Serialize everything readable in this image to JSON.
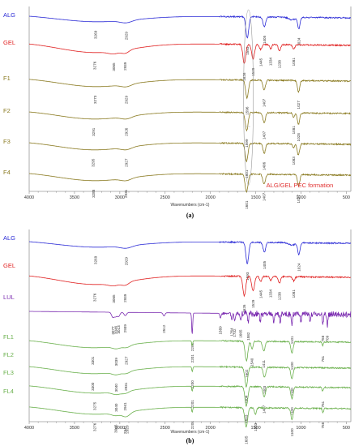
{
  "chart_data": [
    {
      "type": "line",
      "panel_label": "(a)",
      "xlabel": "Wavenumbers (cm-1)",
      "ylabel": "",
      "xlim": [
        4000,
        450
      ],
      "x_reversed": true,
      "x_ticks": [
        4000,
        3500,
        3000,
        2500,
        2000,
        1500,
        1000,
        500
      ],
      "grid": false,
      "annotation": "ALG/GEL PEC formation",
      "series": [
        {
          "name": "ALG",
          "color": "#2b2bd6",
          "peaks": [
            3269,
            2929,
            1593,
            1405,
            1024
          ]
        },
        {
          "name": "GEL",
          "color": "#e02020",
          "peaks": [
            3276,
            3065,
            2939,
            1626,
            1529,
            1445,
            1334,
            1238,
            1081
          ]
        },
        {
          "name": "F1",
          "color": "#8a7a20",
          "peaks": [
            3273,
            2929,
            1596,
            1407,
            1027
          ]
        },
        {
          "name": "F2",
          "color": "#8a7a20",
          "peaks": [
            3291,
            2926,
            1599,
            1407,
            1081,
            1028
          ]
        },
        {
          "name": "F3",
          "color": "#8a7a20",
          "peaks": [
            3295,
            2927,
            1601,
            1406,
            1083
          ]
        },
        {
          "name": "F4",
          "color": "#8a7a20",
          "peaks": [
            3288,
            2931,
            1601,
            1407,
            1027
          ]
        }
      ]
    },
    {
      "type": "line",
      "panel_label": "(b)",
      "xlabel": "Wavenumbers (cm-1)",
      "ylabel": "",
      "xlim": [
        4000,
        450
      ],
      "x_reversed": true,
      "x_ticks": [
        4000,
        3500,
        3000,
        2500,
        2000,
        1500,
        1000,
        500
      ],
      "grid": false,
      "series": [
        {
          "name": "ALG",
          "color": "#2b2bd6",
          "peaks": [
            3269,
            2929,
            1593,
            1405,
            1024
          ]
        },
        {
          "name": "GEL",
          "color": "#e02020",
          "peaks": [
            3276,
            3065,
            2939,
            1626,
            1529,
            1445,
            1334,
            1238,
            1081
          ]
        },
        {
          "name": "LUL",
          "color": "#7a2ab0",
          "peaks": [
            3077,
            3046,
            3013,
            2939,
            2512,
            2201,
            1889,
            1764,
            1732,
            1665,
            1582,
            1101,
            758,
            709
          ]
        },
        {
          "name": "FL1",
          "color": "#6ab04c",
          "peaks": [
            3301,
            3039,
            2927,
            2201,
            1602,
            1540,
            1411,
            1100,
            761
          ]
        },
        {
          "name": "FL2",
          "color": "#6ab04c",
          "peaks": [
            3300,
            3040,
            2931,
            2200,
            1604,
            1403,
            1100
          ]
        },
        {
          "name": "FL3",
          "color": "#6ab04c",
          "peaks": [
            3275,
            3040,
            2941,
            2201,
            1603,
            1407,
            1100,
            761
          ]
        },
        {
          "name": "FL4",
          "color": "#6ab04c",
          "peaks": [
            3276,
            3045,
            2941,
            2920,
            2201,
            1605,
            1503,
            1100,
            758
          ]
        }
      ]
    }
  ]
}
